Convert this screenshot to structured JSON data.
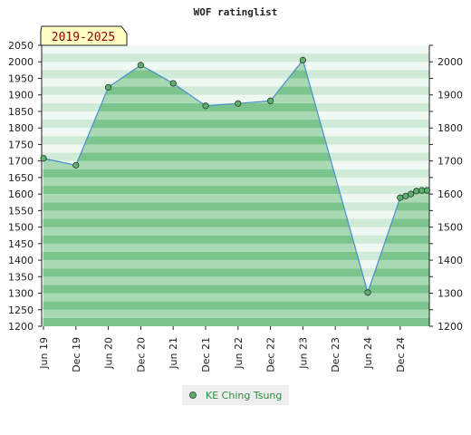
{
  "chart_data": {
    "type": "area",
    "title": "WOF ratinglist",
    "badge": "2019-2025",
    "ylim": [
      1200,
      2050
    ],
    "left_ticks": [
      "2050",
      "2000",
      "1950",
      "1900",
      "1850",
      "1800",
      "1750",
      "1700",
      "1650",
      "1600",
      "1550",
      "1500",
      "1450",
      "1400",
      "1350",
      "1300",
      "1250",
      "1200"
    ],
    "right_ticks": [
      "2000",
      "1900",
      "1800",
      "1700",
      "1600",
      "1500",
      "1400",
      "1300",
      "1200"
    ],
    "x_ticks": [
      "Jun 19",
      "Dec 19",
      "Jun 20",
      "Dec 20",
      "Jun 21",
      "Dec 21",
      "Jun 22",
      "Dec 22",
      "Jun 23",
      "Dec 23",
      "Jun 24",
      "Dec 24"
    ],
    "series": [
      {
        "name": "KE Ching Tsung",
        "points": [
          {
            "x": 0,
            "y": 1708
          },
          {
            "x": 1,
            "y": 1687
          },
          {
            "x": 2,
            "y": 1923
          },
          {
            "x": 3,
            "y": 1990
          },
          {
            "x": 4,
            "y": 1935
          },
          {
            "x": 5,
            "y": 1867
          },
          {
            "x": 6,
            "y": 1874
          },
          {
            "x": 7,
            "y": 1882
          },
          {
            "x": 8,
            "y": 2005
          },
          {
            "x": 10,
            "y": 1302
          },
          {
            "x": 11,
            "y": 1589
          },
          {
            "x": 11.17,
            "y": 1594
          },
          {
            "x": 11.33,
            "y": 1600
          },
          {
            "x": 11.5,
            "y": 1609
          },
          {
            "x": 11.67,
            "y": 1611
          },
          {
            "x": 11.83,
            "y": 1611
          }
        ]
      }
    ],
    "colors": {
      "line": "#4a8fd0",
      "marker": "#57b26a",
      "area_dark": "#7cc48e",
      "area_light": "#a8d9b3",
      "band_dark": "#bfe3c8",
      "band_light": "#eaf6ed",
      "badge_bg": "#ffffc4"
    },
    "legend_position": "bottom-center"
  }
}
